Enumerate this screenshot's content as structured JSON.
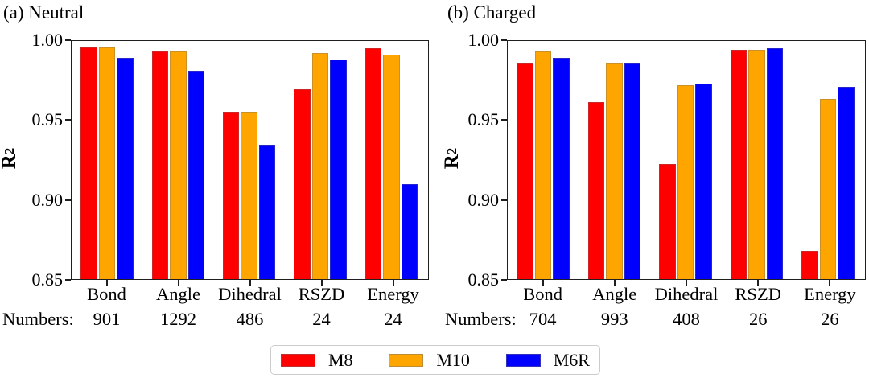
{
  "figure": {
    "numbers_prefix": "Numbers:",
    "legend": {
      "items": [
        {
          "label": "M8",
          "color": "#ff0000"
        },
        {
          "label": "M10",
          "color": "#ffa500"
        },
        {
          "label": "M6R",
          "color": "#0000ff"
        }
      ]
    }
  },
  "chart_data": [
    {
      "type": "bar",
      "title": "(a) Neutral",
      "ylabel": "R²",
      "ylim": [
        0.85,
        1.0
      ],
      "ytick_labels": [
        "1.00",
        "0.95",
        "0.90",
        "0.85"
      ],
      "yticks": [
        1.0,
        0.95,
        0.9,
        0.85
      ],
      "grid": false,
      "legend_position": "bottom-center",
      "categories": [
        "Bond",
        "Angle",
        "Dihedral",
        "RSZD",
        "Energy"
      ],
      "numbers": [
        "901",
        "1292",
        "486",
        "24",
        "24"
      ],
      "series": [
        {
          "name": "M8",
          "color": "#ff0000",
          "values": [
            0.997,
            0.994,
            0.956,
            0.97,
            0.996
          ]
        },
        {
          "name": "M10",
          "color": "#ffa500",
          "values": [
            0.997,
            0.994,
            0.956,
            0.993,
            0.992
          ]
        },
        {
          "name": "M6R",
          "color": "#0000ff",
          "values": [
            0.99,
            0.982,
            0.935,
            0.989,
            0.91
          ]
        }
      ]
    },
    {
      "type": "bar",
      "title": "(b) Charged",
      "ylabel": "R²",
      "ylim": [
        0.85,
        1.0
      ],
      "ytick_labels": [
        "1.00",
        "0.95",
        "0.90",
        "0.85"
      ],
      "yticks": [
        1.0,
        0.95,
        0.9,
        0.85
      ],
      "grid": false,
      "legend_position": "bottom-center",
      "categories": [
        "Bond",
        "Angle",
        "Dihedral",
        "RSZD",
        "Energy"
      ],
      "numbers": [
        "704",
        "993",
        "408",
        "26",
        "26"
      ],
      "series": [
        {
          "name": "M8",
          "color": "#ff0000",
          "values": [
            0.987,
            0.962,
            0.923,
            0.995,
            0.868
          ]
        },
        {
          "name": "M10",
          "color": "#ffa500",
          "values": [
            0.994,
            0.987,
            0.973,
            0.995,
            0.964
          ]
        },
        {
          "name": "M6R",
          "color": "#0000ff",
          "values": [
            0.99,
            0.987,
            0.974,
            0.996,
            0.972
          ]
        }
      ]
    }
  ]
}
